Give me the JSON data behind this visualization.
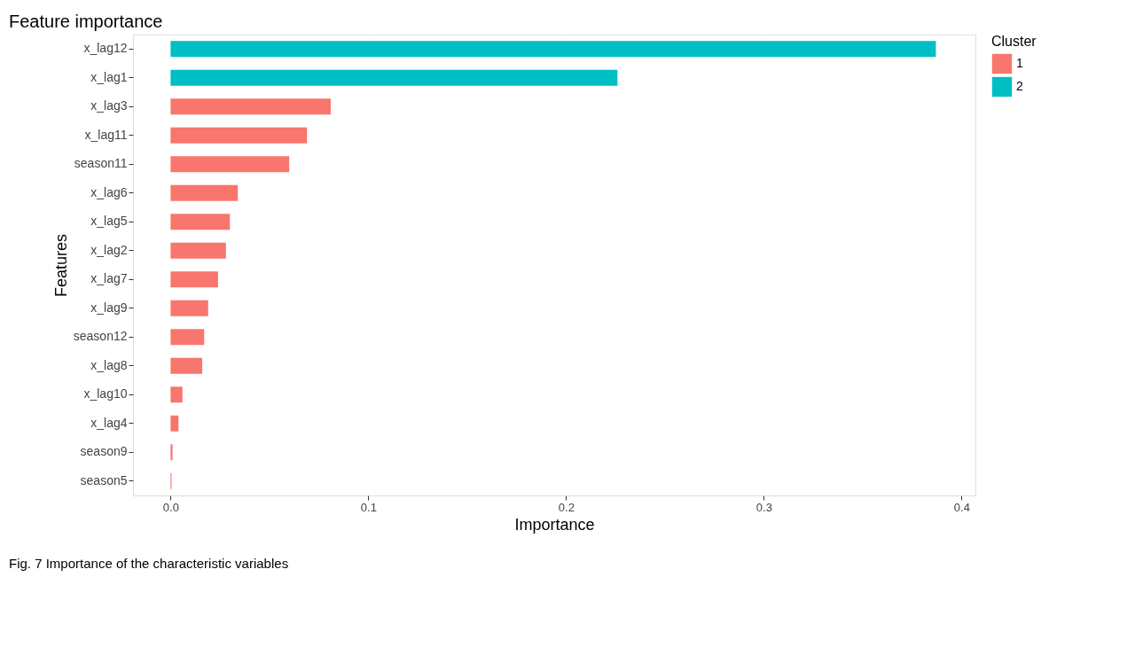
{
  "chart_data": {
    "type": "bar",
    "orientation": "horizontal",
    "title": "Feature importance",
    "xlabel": "Importance",
    "ylabel": "Features",
    "legend_title": "Cluster",
    "legend": "right",
    "grid": "x",
    "categories": [
      "x_lag12",
      "x_lag1",
      "x_lag3",
      "x_lag11",
      "season11",
      "x_lag6",
      "x_lag5",
      "x_lag2",
      "x_lag7",
      "x_lag9",
      "season12",
      "x_lag8",
      "x_lag10",
      "x_lag4",
      "season9",
      "season5"
    ],
    "series": [
      {
        "name": "1",
        "color": "#f8766d",
        "values": [
          null,
          null,
          0.081,
          0.069,
          0.06,
          0.034,
          0.03,
          0.028,
          0.024,
          0.019,
          0.017,
          0.016,
          0.006,
          0.004,
          0.001,
          0.0005
        ]
      },
      {
        "name": "2",
        "color": "#00bfc4",
        "values": [
          0.387,
          0.226,
          null,
          null,
          null,
          null,
          null,
          null,
          null,
          null,
          null,
          null,
          null,
          null,
          null,
          null
        ]
      }
    ],
    "xlim": [
      -0.019,
      0.407
    ],
    "xticks": [
      {
        "value": 0,
        "label": "0.0"
      },
      0.1,
      0.2,
      0.3,
      0.4
    ],
    "annotations": [
      "Fig. 7  Importance of the characteristic variables"
    ]
  }
}
